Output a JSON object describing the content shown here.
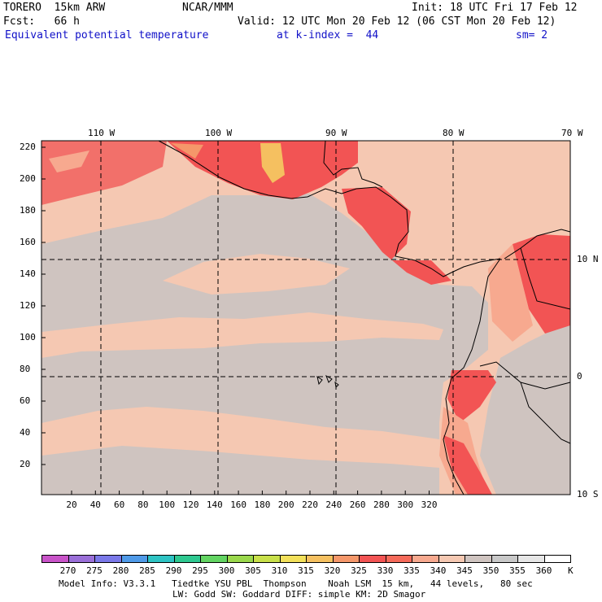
{
  "header": {
    "model": "TORERO  15km ARW",
    "center": "NCAR/MMM",
    "init": "Init: 18 UTC Fri 17 Feb 12",
    "fcst": "Fcst:   66 h",
    "valid": "Valid: 12 UTC Mon 20 Feb 12 (06 CST Mon 20 Feb 12)",
    "field": "Equivalent potential temperature",
    "level": "at k-index =  44",
    "smooth": "sm= 2"
  },
  "map": {
    "lon_labels": [
      "110 W",
      "100 W",
      "90 W",
      "80 W",
      "70 W"
    ],
    "lat_labels": [
      "10 N",
      "0",
      "10 S"
    ],
    "y_ticks": [
      "220",
      "200",
      "180",
      "160",
      "140",
      "120",
      "100",
      "80",
      "60",
      "40",
      "20"
    ],
    "x_ticks": [
      "20",
      "40",
      "60",
      "80",
      "100",
      "120",
      "140",
      "160",
      "180",
      "200",
      "220",
      "240",
      "260",
      "280",
      "300",
      "320"
    ],
    "field_range": [
      330,
      355
    ],
    "dominant_class": "345-350"
  },
  "colorbar": {
    "unit": "K",
    "labels": [
      "270",
      "275",
      "280",
      "285",
      "290",
      "295",
      "300",
      "305",
      "310",
      "315",
      "320",
      "325",
      "330",
      "335",
      "340",
      "345",
      "350",
      "355",
      "360"
    ],
    "colors": [
      "#c853c8",
      "#9a6fd8",
      "#7a78e8",
      "#4f9ae8",
      "#2ec3c3",
      "#2ec890",
      "#62d462",
      "#9ad84c",
      "#c8e04a",
      "#f2e05a",
      "#f5c060",
      "#f5976a",
      "#f25454",
      "#f56a5a",
      "#f7a98f",
      "#f5c8b2",
      "#cfc4c0",
      "#c8c8c8",
      "#e6e6e6",
      "#ffffff"
    ]
  },
  "footer": {
    "line1": "Model Info: V3.3.1   Tiedtke YSU PBL  Thompson    Noah LSM  15 km,   44 levels,   80 sec",
    "line2": "LW: Godd SW: Goddard DIFF: simple KM: 2D Smagor"
  }
}
